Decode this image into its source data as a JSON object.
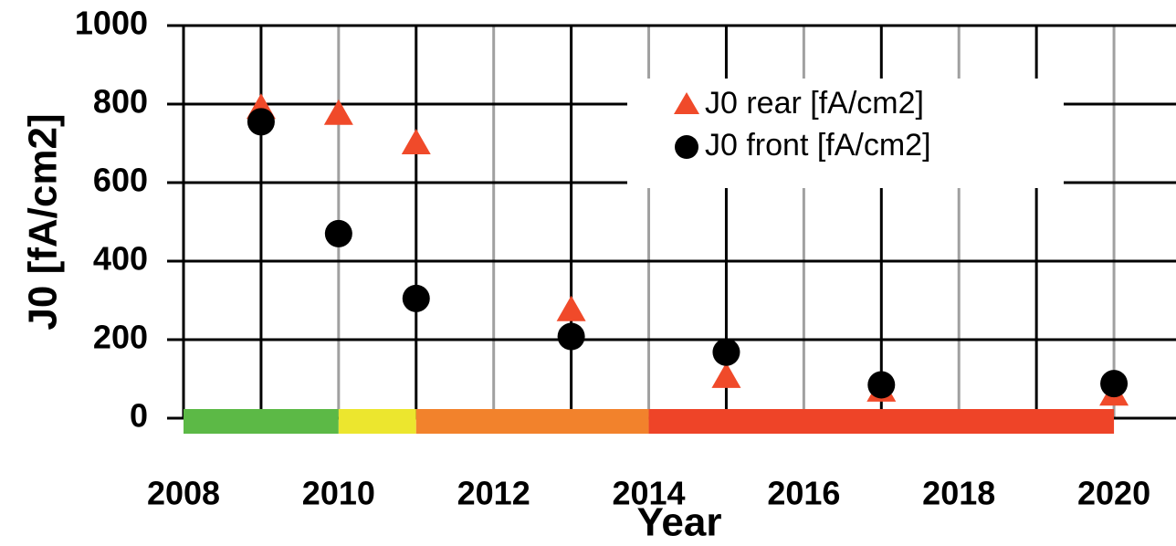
{
  "chart_data": {
    "type": "scatter",
    "xlabel": "Year",
    "ylabel": "J0  [fA/cm2]",
    "xlim": [
      2008,
      2020.8
    ],
    "ylim": [
      0,
      1000
    ],
    "xticks": [
      2008,
      2010,
      2012,
      2014,
      2016,
      2018,
      2020
    ],
    "xminorticks": [
      2009,
      2011,
      2013,
      2015,
      2017,
      2019
    ],
    "yticks": [
      0,
      200,
      400,
      600,
      800,
      1000
    ],
    "grid": true,
    "legend": "upper right",
    "series": [
      {
        "name": "J0 rear [fA/cm2]",
        "color": "#f04a2a",
        "marker": "triangle",
        "x": [
          2009,
          2010,
          2011,
          2013,
          2015,
          2017,
          2020
        ],
        "values": [
          790,
          775,
          700,
          275,
          105,
          70,
          60
        ]
      },
      {
        "name": "J0 front [fA/cm2]",
        "color": "#000000",
        "marker": "circle",
        "x": [
          2009,
          2010,
          2011,
          2013,
          2015,
          2017,
          2020
        ],
        "values": [
          755,
          470,
          305,
          208,
          168,
          85,
          88
        ]
      }
    ],
    "bands": [
      {
        "from": 2008,
        "to": 2010,
        "color": "#5cb946"
      },
      {
        "from": 2010,
        "to": 2011,
        "color": "#ece62e"
      },
      {
        "from": 2011,
        "to": 2014,
        "color": "#f2822c"
      },
      {
        "from": 2014,
        "to": 2020,
        "color": "#ee4428"
      }
    ]
  }
}
